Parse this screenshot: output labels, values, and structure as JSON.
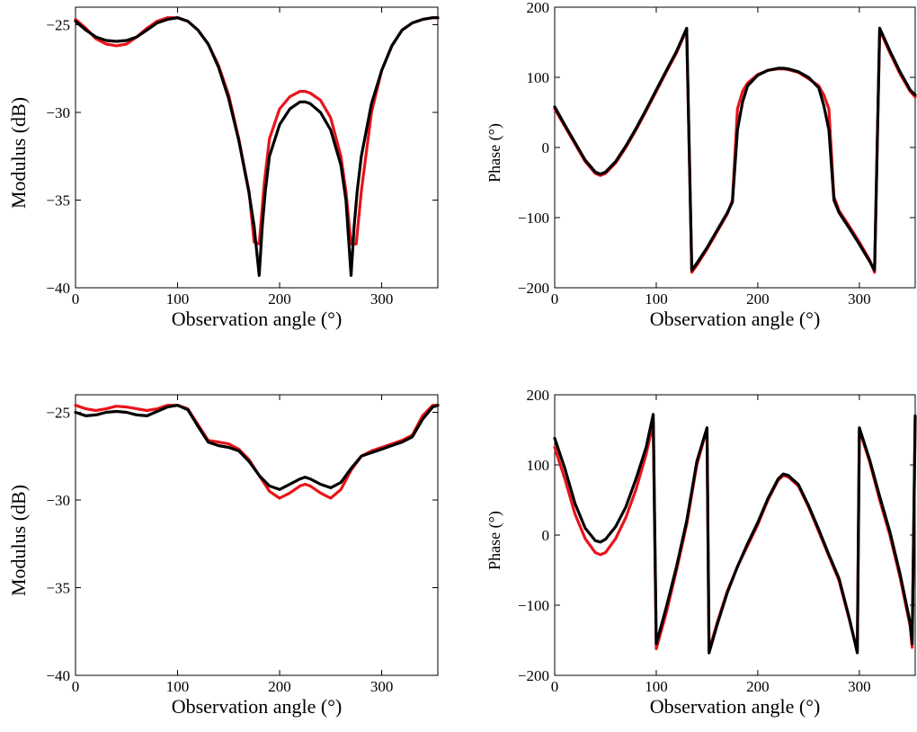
{
  "colors": {
    "series_red": "#e8141a",
    "series_black": "#000000"
  },
  "chart_data": [
    {
      "type": "line",
      "id": "modulus-top",
      "xlabel": "Observation angle (°)",
      "ylabel": "Modulus (dB)",
      "xlim": [
        0,
        355
      ],
      "ylim": [
        -40,
        -24
      ],
      "xticks": [
        0,
        100,
        200,
        300
      ],
      "yticks": [
        -40,
        -35,
        -30,
        -25
      ],
      "xtick_labels": [
        "0",
        "100",
        "200",
        "300"
      ],
      "ytick_labels": [
        "−40",
        "−35",
        "−30",
        "−25"
      ],
      "series": [
        {
          "color": "#e8141a",
          "x": [
            0,
            10,
            20,
            30,
            40,
            50,
            60,
            70,
            80,
            90,
            100,
            110,
            120,
            130,
            140,
            150,
            160,
            170,
            175,
            180,
            185,
            190,
            200,
            210,
            220,
            225,
            230,
            240,
            250,
            260,
            265,
            270,
            275,
            280,
            290,
            300,
            310,
            320,
            330,
            340,
            350,
            355
          ],
          "y": [
            -24.7,
            -25.2,
            -25.8,
            -26.1,
            -26.2,
            -26.1,
            -25.7,
            -25.2,
            -24.8,
            -24.6,
            -24.6,
            -24.8,
            -25.3,
            -26.1,
            -27.3,
            -29.0,
            -31.5,
            -34.5,
            -37.4,
            -37.5,
            -34.0,
            -31.5,
            -29.8,
            -29.1,
            -28.8,
            -28.8,
            -28.9,
            -29.3,
            -30.3,
            -32.5,
            -34.5,
            -37.5,
            -37.5,
            -34.5,
            -30.0,
            -27.6,
            -26.2,
            -25.3,
            -24.9,
            -24.7,
            -24.6,
            -24.6
          ]
        },
        {
          "color": "#000000",
          "x": [
            0,
            10,
            20,
            30,
            40,
            50,
            60,
            70,
            80,
            90,
            100,
            110,
            120,
            130,
            140,
            150,
            160,
            170,
            175,
            180,
            183,
            186,
            190,
            200,
            210,
            220,
            225,
            230,
            240,
            250,
            260,
            265,
            270,
            273,
            276,
            280,
            290,
            300,
            310,
            320,
            330,
            340,
            350,
            355
          ],
          "y": [
            -24.8,
            -25.3,
            -25.7,
            -25.9,
            -25.95,
            -25.9,
            -25.7,
            -25.3,
            -24.9,
            -24.7,
            -24.6,
            -24.8,
            -25.3,
            -26.1,
            -27.4,
            -29.2,
            -31.6,
            -34.6,
            -36.5,
            -39.3,
            -36.5,
            -34.5,
            -32.5,
            -30.7,
            -29.8,
            -29.4,
            -29.4,
            -29.5,
            -30.0,
            -31.0,
            -33.0,
            -35.0,
            -39.3,
            -36.5,
            -34.5,
            -32.5,
            -29.5,
            -27.6,
            -26.2,
            -25.3,
            -24.9,
            -24.7,
            -24.6,
            -24.6
          ]
        }
      ]
    },
    {
      "type": "line",
      "id": "phase-top",
      "xlabel": "Observation angle (°)",
      "ylabel": "Phase (°)",
      "xlim": [
        0,
        355
      ],
      "ylim": [
        -200,
        200
      ],
      "xticks": [
        0,
        100,
        200,
        300
      ],
      "yticks": [
        -200,
        -100,
        0,
        100,
        200
      ],
      "xtick_labels": [
        "0",
        "100",
        "200",
        "300"
      ],
      "ytick_labels": [
        "−200",
        "−100",
        "0",
        "100",
        "200"
      ],
      "series": [
        {
          "color": "#e8141a",
          "x": [
            0,
            10,
            20,
            30,
            40,
            45,
            50,
            60,
            70,
            80,
            90,
            100,
            110,
            120,
            130,
            135,
            140,
            150,
            160,
            170,
            175,
            180,
            185,
            190,
            200,
            210,
            220,
            225,
            230,
            240,
            250,
            260,
            265,
            270,
            275,
            280,
            290,
            300,
            310,
            315,
            320,
            330,
            340,
            350,
            355
          ],
          "y": [
            55,
            30,
            5,
            -20,
            -37,
            -40,
            -37,
            -22,
            0,
            25,
            52,
            80,
            108,
            135,
            168,
            -178,
            -168,
            -145,
            -120,
            -95,
            -75,
            55,
            80,
            92,
            104,
            110,
            112,
            112,
            111,
            107,
            98,
            88,
            75,
            55,
            -70,
            -90,
            -112,
            -135,
            -160,
            -178,
            168,
            135,
            105,
            80,
            72
          ]
        },
        {
          "color": "#000000",
          "x": [
            0,
            10,
            20,
            30,
            40,
            45,
            50,
            60,
            70,
            80,
            90,
            100,
            110,
            120,
            130,
            135,
            140,
            150,
            160,
            170,
            175,
            180,
            185,
            190,
            200,
            210,
            220,
            225,
            230,
            240,
            250,
            260,
            265,
            270,
            275,
            280,
            290,
            300,
            310,
            315,
            320,
            330,
            340,
            350,
            355
          ],
          "y": [
            58,
            32,
            7,
            -18,
            -35,
            -38,
            -35,
            -20,
            2,
            27,
            54,
            82,
            110,
            137,
            170,
            -175,
            -165,
            -143,
            -118,
            -93,
            -78,
            25,
            65,
            88,
            103,
            110,
            113,
            113,
            112,
            108,
            100,
            85,
            60,
            25,
            -75,
            -93,
            -115,
            -138,
            -162,
            -175,
            170,
            138,
            108,
            82,
            75
          ]
        }
      ]
    },
    {
      "type": "line",
      "id": "modulus-bottom",
      "xlabel": "Observation angle (°)",
      "ylabel": "Modulus (dB)",
      "xlim": [
        0,
        355
      ],
      "ylim": [
        -40,
        -24
      ],
      "xticks": [
        0,
        100,
        200,
        300
      ],
      "yticks": [
        -40,
        -35,
        -30,
        -25
      ],
      "xtick_labels": [
        "0",
        "100",
        "200",
        "300"
      ],
      "ytick_labels": [
        "−40",
        "−35",
        "−30",
        "−25"
      ],
      "series": [
        {
          "color": "#e8141a",
          "x": [
            0,
            10,
            20,
            30,
            40,
            50,
            60,
            70,
            80,
            90,
            100,
            110,
            120,
            130,
            140,
            150,
            160,
            170,
            180,
            190,
            200,
            210,
            220,
            225,
            230,
            240,
            250,
            260,
            270,
            280,
            290,
            300,
            310,
            320,
            330,
            340,
            350,
            355
          ],
          "y": [
            -24.6,
            -24.8,
            -24.9,
            -24.8,
            -24.65,
            -24.7,
            -24.8,
            -24.9,
            -24.8,
            -24.6,
            -24.6,
            -24.8,
            -25.7,
            -26.6,
            -26.7,
            -26.8,
            -27.1,
            -27.7,
            -28.6,
            -29.5,
            -29.9,
            -29.6,
            -29.2,
            -29.1,
            -29.2,
            -29.6,
            -29.9,
            -29.4,
            -28.3,
            -27.5,
            -27.2,
            -27.0,
            -26.8,
            -26.6,
            -26.3,
            -25.2,
            -24.6,
            -24.6
          ]
        },
        {
          "color": "#000000",
          "x": [
            0,
            10,
            20,
            30,
            40,
            50,
            60,
            70,
            80,
            90,
            100,
            110,
            120,
            130,
            140,
            150,
            160,
            170,
            180,
            190,
            200,
            210,
            220,
            225,
            230,
            240,
            250,
            260,
            270,
            280,
            290,
            300,
            310,
            320,
            330,
            340,
            350,
            355
          ],
          "y": [
            -25.0,
            -25.2,
            -25.15,
            -25.0,
            -24.95,
            -25.0,
            -25.15,
            -25.2,
            -24.95,
            -24.7,
            -24.6,
            -24.85,
            -25.8,
            -26.7,
            -26.9,
            -27.0,
            -27.2,
            -27.8,
            -28.6,
            -29.2,
            -29.4,
            -29.1,
            -28.8,
            -28.7,
            -28.8,
            -29.1,
            -29.3,
            -29.0,
            -28.2,
            -27.5,
            -27.3,
            -27.1,
            -26.9,
            -26.7,
            -26.4,
            -25.4,
            -24.7,
            -24.6
          ]
        }
      ]
    },
    {
      "type": "line",
      "id": "phase-bottom",
      "xlabel": "Observation angle (°)",
      "ylabel": "Phase (°)",
      "xlim": [
        0,
        355
      ],
      "ylim": [
        -200,
        200
      ],
      "xticks": [
        0,
        100,
        200,
        300
      ],
      "yticks": [
        -200,
        -100,
        0,
        100,
        200
      ],
      "xtick_labels": [
        "0",
        "100",
        "200",
        "300"
      ],
      "ytick_labels": [
        "−200",
        "−100",
        "0",
        "100",
        "200"
      ],
      "series": [
        {
          "color": "#e8141a",
          "x": [
            0,
            10,
            20,
            30,
            40,
            45,
            50,
            60,
            70,
            80,
            90,
            97,
            100,
            110,
            120,
            130,
            140,
            150,
            152,
            160,
            170,
            180,
            190,
            200,
            210,
            220,
            225,
            230,
            240,
            250,
            260,
            270,
            280,
            290,
            298,
            300,
            310,
            320,
            330,
            340,
            350,
            352,
            355
          ],
          "y": [
            125,
            80,
            30,
            -5,
            -25,
            -28,
            -25,
            -5,
            25,
            65,
            115,
            160,
            -162,
            -110,
            -50,
            15,
            100,
            152,
            -165,
            -125,
            -80,
            -45,
            -15,
            15,
            50,
            78,
            85,
            83,
            70,
            40,
            5,
            -30,
            -65,
            -120,
            -165,
            150,
            105,
            50,
            0,
            -60,
            -130,
            -160,
            165
          ]
        },
        {
          "color": "#000000",
          "x": [
            0,
            10,
            20,
            30,
            40,
            45,
            50,
            60,
            70,
            80,
            90,
            97,
            100,
            110,
            120,
            130,
            140,
            150,
            152,
            160,
            170,
            180,
            190,
            200,
            210,
            220,
            225,
            230,
            240,
            250,
            260,
            270,
            280,
            290,
            298,
            300,
            310,
            320,
            330,
            340,
            350,
            352,
            355
          ],
          "y": [
            138,
            95,
            45,
            10,
            -8,
            -10,
            -6,
            12,
            40,
            80,
            125,
            172,
            -155,
            -102,
            -45,
            20,
            105,
            153,
            -168,
            -128,
            -82,
            -45,
            -12,
            18,
            52,
            80,
            87,
            85,
            72,
            42,
            8,
            -28,
            -62,
            -118,
            -168,
            153,
            108,
            55,
            5,
            -55,
            -125,
            -155,
            170
          ]
        }
      ]
    }
  ]
}
